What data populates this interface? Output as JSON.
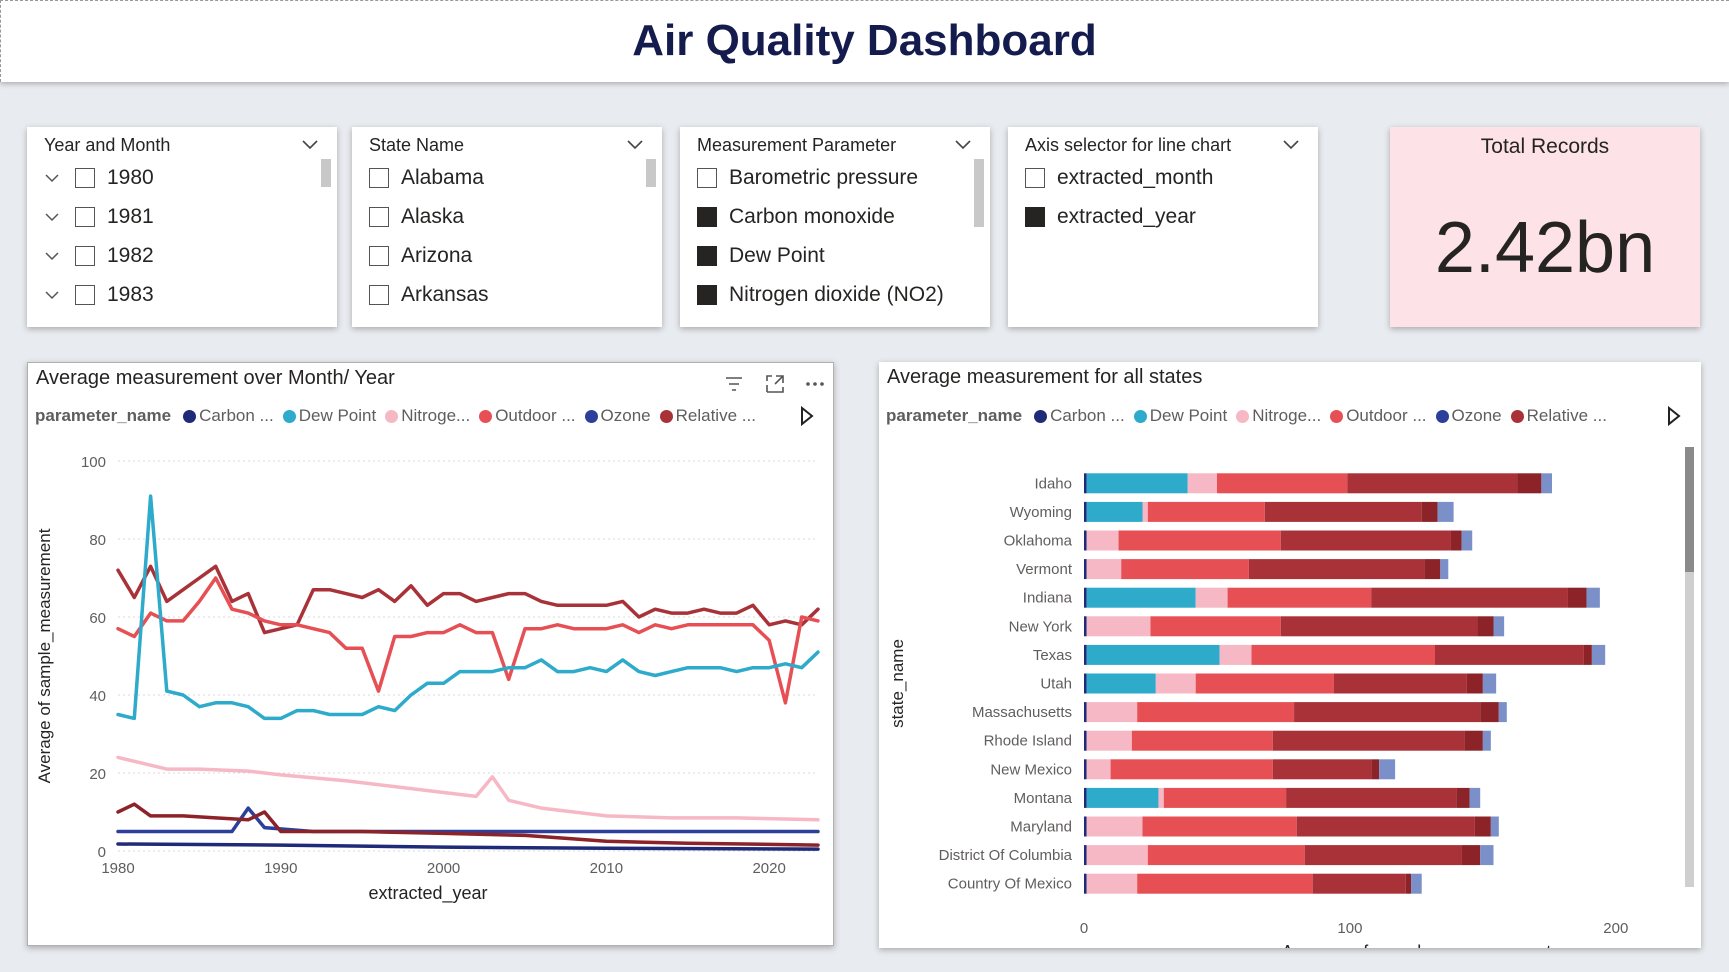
{
  "header": {
    "title": "Air Quality Dashboard"
  },
  "slicers": [
    {
      "title": "Year and Month",
      "expandable": true,
      "items": [
        {
          "label": "1980",
          "checked": false
        },
        {
          "label": "1981",
          "checked": false
        },
        {
          "label": "1982",
          "checked": false
        },
        {
          "label": "1983",
          "checked": false
        }
      ]
    },
    {
      "title": "State Name",
      "expandable": false,
      "items": [
        {
          "label": "Alabama",
          "checked": false
        },
        {
          "label": "Alaska",
          "checked": false
        },
        {
          "label": "Arizona",
          "checked": false
        },
        {
          "label": "Arkansas",
          "checked": false
        }
      ]
    },
    {
      "title": "Measurement Parameter",
      "expandable": false,
      "items": [
        {
          "label": "Barometric pressure",
          "checked": false
        },
        {
          "label": "Carbon monoxide",
          "checked": true
        },
        {
          "label": "Dew Point",
          "checked": true
        },
        {
          "label": "Nitrogen dioxide (NO2)",
          "checked": true
        }
      ]
    },
    {
      "title": "Axis selector for line chart",
      "expandable": false,
      "items": [
        {
          "label": "extracted_month",
          "checked": false
        },
        {
          "label": "extracted_year",
          "checked": true
        }
      ]
    }
  ],
  "kpi": {
    "label": "Total Records",
    "value": "2.42bn"
  },
  "legend": {
    "title": "parameter_name",
    "items": [
      {
        "label": "Carbon ...",
        "color": "#1f2a78"
      },
      {
        "label": "Dew Point",
        "color": "#2eaacb"
      },
      {
        "label": "Nitroge...",
        "color": "#f6b8c4"
      },
      {
        "label": "Outdoor ...",
        "color": "#e65055"
      },
      {
        "label": "Ozone",
        "color": "#2b3f9b"
      },
      {
        "label": "Relative ...",
        "color": "#a83238"
      }
    ],
    "right_legend_items": [
      {
        "label": "Carbon ...",
        "color": "#1f2a78"
      },
      {
        "label": "Dew Point",
        "color": "#2eaacb"
      },
      {
        "label": "Nitroge...",
        "color": "#f6b8c4"
      },
      {
        "label": "Outdoor ...",
        "color": "#e65055"
      },
      {
        "label": "Ozone",
        "color": "#2b3f9b"
      },
      {
        "label": "Relative ...",
        "color": "#a83238"
      }
    ]
  },
  "chart_data": [
    {
      "type": "line",
      "title": "Average measurement over Month/ Year",
      "xlabel": "extracted_year",
      "ylabel": "Average of sample_measurement",
      "xlim": [
        1980,
        2023
      ],
      "ylim": [
        0,
        100
      ],
      "xticks": [
        1980,
        1990,
        2000,
        2010,
        2020
      ],
      "yticks": [
        0,
        20,
        40,
        60,
        80,
        100
      ],
      "grid": true,
      "legend_position": "top",
      "series": [
        {
          "name": "Relative ...",
          "color": "#a83238",
          "points": [
            [
              1980,
              72
            ],
            [
              1981,
              65
            ],
            [
              1982,
              73
            ],
            [
              1983,
              64
            ],
            [
              1984,
              67
            ],
            [
              1985,
              70
            ],
            [
              1986,
              73
            ],
            [
              1987,
              64
            ],
            [
              1988,
              66
            ],
            [
              1989,
              56
            ],
            [
              1990,
              57
            ],
            [
              1991,
              58
            ],
            [
              1992,
              67
            ],
            [
              1993,
              67
            ],
            [
              1994,
              66
            ],
            [
              1995,
              65
            ],
            [
              1996,
              67
            ],
            [
              1997,
              64
            ],
            [
              1998,
              68
            ],
            [
              1999,
              63
            ],
            [
              2000,
              66
            ],
            [
              2001,
              66
            ],
            [
              2002,
              64
            ],
            [
              2003,
              65
            ],
            [
              2004,
              66
            ],
            [
              2005,
              66
            ],
            [
              2006,
              64
            ],
            [
              2007,
              63
            ],
            [
              2008,
              63
            ],
            [
              2009,
              63
            ],
            [
              2010,
              63
            ],
            [
              2011,
              64
            ],
            [
              2012,
              60
            ],
            [
              2013,
              62
            ],
            [
              2014,
              61
            ],
            [
              2015,
              61
            ],
            [
              2016,
              62
            ],
            [
              2017,
              61
            ],
            [
              2018,
              61
            ],
            [
              2019,
              63
            ],
            [
              2020,
              58
            ],
            [
              2021,
              59
            ],
            [
              2022,
              58
            ],
            [
              2023,
              62
            ]
          ]
        },
        {
          "name": "Outdoor ...",
          "color": "#e65055",
          "points": [
            [
              1980,
              57
            ],
            [
              1981,
              55
            ],
            [
              1982,
              61
            ],
            [
              1983,
              59
            ],
            [
              1984,
              59
            ],
            [
              1985,
              64
            ],
            [
              1986,
              70
            ],
            [
              1987,
              62
            ],
            [
              1988,
              61
            ],
            [
              1989,
              59
            ],
            [
              1990,
              58
            ],
            [
              1991,
              58
            ],
            [
              1992,
              57
            ],
            [
              1993,
              56
            ],
            [
              1994,
              52
            ],
            [
              1995,
              52
            ],
            [
              1996,
              41
            ],
            [
              1997,
              55
            ],
            [
              1998,
              55
            ],
            [
              1999,
              56
            ],
            [
              2000,
              56
            ],
            [
              2001,
              58
            ],
            [
              2002,
              56
            ],
            [
              2003,
              56
            ],
            [
              2004,
              44
            ],
            [
              2005,
              57
            ],
            [
              2006,
              57
            ],
            [
              2007,
              58
            ],
            [
              2008,
              57
            ],
            [
              2009,
              57
            ],
            [
              2010,
              57
            ],
            [
              2011,
              58
            ],
            [
              2012,
              56
            ],
            [
              2013,
              58
            ],
            [
              2014,
              57
            ],
            [
              2015,
              58
            ],
            [
              2016,
              58
            ],
            [
              2017,
              58
            ],
            [
              2018,
              58
            ],
            [
              2019,
              58
            ],
            [
              2020,
              54
            ],
            [
              2021,
              38
            ],
            [
              2022,
              60
            ],
            [
              2023,
              59
            ]
          ]
        },
        {
          "name": "Dew Point",
          "color": "#2eaacb",
          "points": [
            [
              1980,
              35
            ],
            [
              1981,
              34
            ],
            [
              1982,
              91
            ],
            [
              1983,
              41
            ],
            [
              1984,
              40
            ],
            [
              1985,
              37
            ],
            [
              1986,
              38
            ],
            [
              1987,
              38
            ],
            [
              1988,
              37
            ],
            [
              1989,
              34
            ],
            [
              1990,
              34
            ],
            [
              1991,
              36
            ],
            [
              1992,
              36
            ],
            [
              1993,
              35
            ],
            [
              1994,
              35
            ],
            [
              1995,
              35
            ],
            [
              1996,
              37
            ],
            [
              1997,
              36
            ],
            [
              1998,
              40
            ],
            [
              1999,
              43
            ],
            [
              2000,
              43
            ],
            [
              2001,
              46
            ],
            [
              2002,
              46
            ],
            [
              2003,
              46
            ],
            [
              2004,
              47
            ],
            [
              2005,
              47
            ],
            [
              2006,
              49
            ],
            [
              2007,
              46
            ],
            [
              2008,
              46
            ],
            [
              2009,
              47
            ],
            [
              2010,
              46
            ],
            [
              2011,
              49
            ],
            [
              2012,
              46
            ],
            [
              2013,
              45
            ],
            [
              2014,
              46
            ],
            [
              2015,
              47
            ],
            [
              2016,
              47
            ],
            [
              2017,
              47
            ],
            [
              2018,
              46
            ],
            [
              2019,
              47
            ],
            [
              2020,
              47
            ],
            [
              2021,
              48
            ],
            [
              2022,
              47
            ],
            [
              2023,
              51
            ]
          ]
        },
        {
          "name": "Nitroge...",
          "color": "#f6b8c4",
          "points": [
            [
              1980,
              24
            ],
            [
              1983,
              21
            ],
            [
              1985,
              21
            ],
            [
              1988,
              20.5
            ],
            [
              1990,
              19.5
            ],
            [
              1994,
              18
            ],
            [
              1997,
              16.5
            ],
            [
              2000,
              15
            ],
            [
              2002,
              14
            ],
            [
              2003,
              19
            ],
            [
              2004,
              13
            ],
            [
              2006,
              11
            ],
            [
              2008,
              10
            ],
            [
              2010,
              9
            ],
            [
              2014,
              8.5
            ],
            [
              2018,
              8.5
            ],
            [
              2023,
              8
            ]
          ]
        },
        {
          "name": "Carbon ...",
          "color": "#1f2a78",
          "points": [
            [
              1980,
              1.8
            ],
            [
              1990,
              1.5
            ],
            [
              2000,
              1
            ],
            [
              2010,
              0.7
            ],
            [
              2023,
              0.5
            ]
          ]
        },
        {
          "name": "Ozone",
          "color": "#2b3f9b",
          "points": [
            [
              1980,
              5
            ],
            [
              1985,
              5
            ],
            [
              1987,
              5
            ],
            [
              1988,
              11
            ],
            [
              1989,
              6
            ],
            [
              1992,
              5
            ],
            [
              2000,
              5
            ],
            [
              2010,
              5
            ],
            [
              2023,
              5
            ]
          ]
        },
        {
          "name": "Relative ...",
          "color": "#8c2328",
          "points": [
            [
              1980,
              10
            ],
            [
              1981,
              12
            ],
            [
              1982,
              9
            ],
            [
              1984,
              9
            ],
            [
              1986,
              8.5
            ],
            [
              1988,
              8
            ],
            [
              1989,
              10
            ],
            [
              1990,
              5
            ],
            [
              1995,
              5
            ],
            [
              2000,
              4.5
            ],
            [
              2005,
              4
            ],
            [
              2010,
              2.5
            ],
            [
              2015,
              2
            ],
            [
              2023,
              1.5
            ]
          ]
        }
      ]
    },
    {
      "type": "bar",
      "orientation": "horizontal",
      "stacked": true,
      "title": "Average measurement for all states",
      "xlabel": "Average of sample_measurement",
      "ylabel": "state_name",
      "xlim": [
        0,
        220
      ],
      "xticks": [
        0,
        100,
        200
      ],
      "legend_position": "top",
      "categories": [
        "Idaho",
        "Wyoming",
        "Oklahoma",
        "Vermont",
        "Indiana",
        "New York",
        "Texas",
        "Utah",
        "Massachusetts",
        "Rhode Island",
        "New Mexico",
        "Montana",
        "Maryland",
        "District Of Columbia",
        "Country Of Mexico"
      ],
      "series": [
        {
          "name": "Carbon ...",
          "color": "#1f2a78",
          "values": [
            1,
            1,
            1,
            1,
            1,
            1,
            1,
            1,
            1,
            1,
            1,
            1,
            1,
            1,
            1
          ]
        },
        {
          "name": "Dew Point",
          "color": "#2eaacb",
          "values": [
            38,
            21,
            0,
            0,
            41,
            0,
            50,
            26,
            0,
            0,
            0,
            27,
            0,
            0,
            0
          ]
        },
        {
          "name": "Nitroge...",
          "color": "#f6b8c4",
          "values": [
            11,
            2,
            12,
            13,
            12,
            24,
            12,
            15,
            19,
            17,
            9,
            2,
            21,
            23,
            19
          ]
        },
        {
          "name": "Outdoor ...",
          "color": "#e65055",
          "values": [
            49,
            44,
            61,
            48,
            54,
            49,
            69,
            52,
            59,
            53,
            61,
            46,
            58,
            59,
            66
          ]
        },
        {
          "name": "Relative ...",
          "color": "#a83238",
          "values": [
            64,
            59,
            64,
            66,
            74,
            74,
            56,
            50,
            70,
            72,
            37,
            64,
            67,
            59,
            35
          ]
        },
        {
          "name": "Relative (2)",
          "color": "#8c2328",
          "values": [
            9,
            6,
            4,
            6,
            7,
            6,
            3,
            6,
            7,
            7,
            3,
            5,
            6,
            7,
            2
          ]
        },
        {
          "name": "Ozone",
          "color": "#7b90c8",
          "values": [
            4,
            6,
            4,
            3,
            5,
            4,
            5,
            5,
            3,
            3,
            6,
            4,
            3,
            5,
            4
          ]
        }
      ]
    }
  ]
}
